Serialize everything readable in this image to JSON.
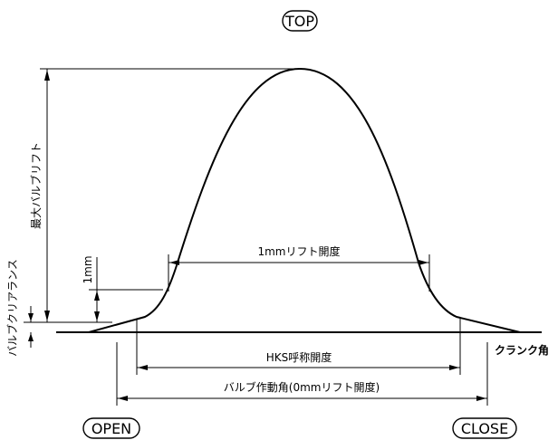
{
  "labels": {
    "top": "TOP",
    "open": "OPEN",
    "close": "CLOSE",
    "crank_angle": "クランク角",
    "max_valve_lift": "最大バルブリフト",
    "valve_clearance": "バルブクリアランス",
    "one_mm": "1mm",
    "one_mm_lift_duration": "1mmリフト開度",
    "hks_nominal_duration": "HKS呼称開度",
    "valve_duration_zero_lift": "バルブ作動角(0mmリフト開度)"
  }
}
